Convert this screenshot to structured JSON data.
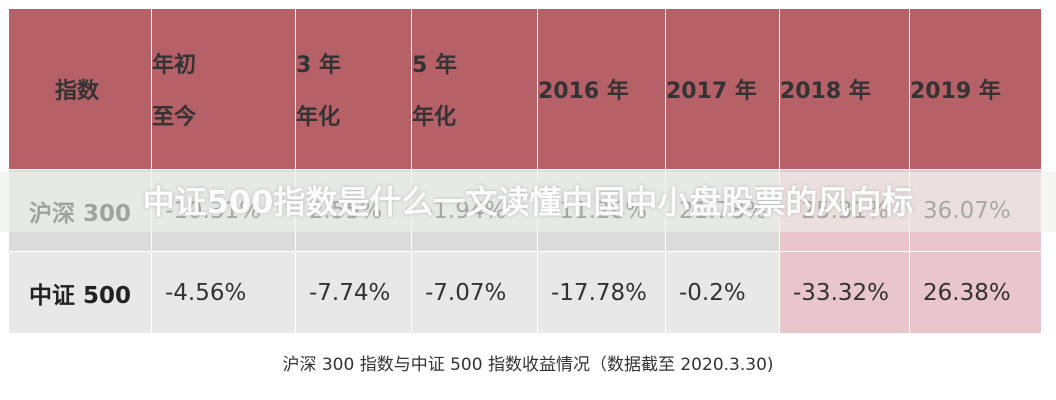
{
  "table": {
    "headers": [
      {
        "line1": "指数",
        "line2": ""
      },
      {
        "line1": "年初",
        "line2": "至今"
      },
      {
        "line1": "3 年",
        "line2": "年化"
      },
      {
        "line1": "5 年",
        "line2": "年化"
      },
      {
        "line1": "2016 年",
        "line2": ""
      },
      {
        "line1": "2017 年",
        "line2": ""
      },
      {
        "line1": "2018 年",
        "line2": ""
      },
      {
        "line1": "2019 年",
        "line2": ""
      }
    ],
    "rows": [
      {
        "name": "沪深 300",
        "values": [
          "-10.31%",
          "2.55%",
          "-1.94%",
          "-11.28%",
          "21.78%",
          "-25.31%",
          "36.07%"
        ]
      },
      {
        "name": "中证 500",
        "values": [
          "-4.56%",
          "-7.74%",
          "-7.07%",
          "-17.78%",
          "-0.2%",
          "-33.32%",
          "26.38%"
        ]
      }
    ]
  },
  "watermark": "中证500指数是什么一文读懂中国中小盘股票的风向标",
  "caption": "沪深 300 指数与中证 500 指数收益情况（数据截至 2020.3.30)",
  "colors": {
    "header": "#b66068",
    "highlight": "#e9c6cb",
    "row1": "#dcdcdc",
    "row2": "#e8e8e8"
  }
}
